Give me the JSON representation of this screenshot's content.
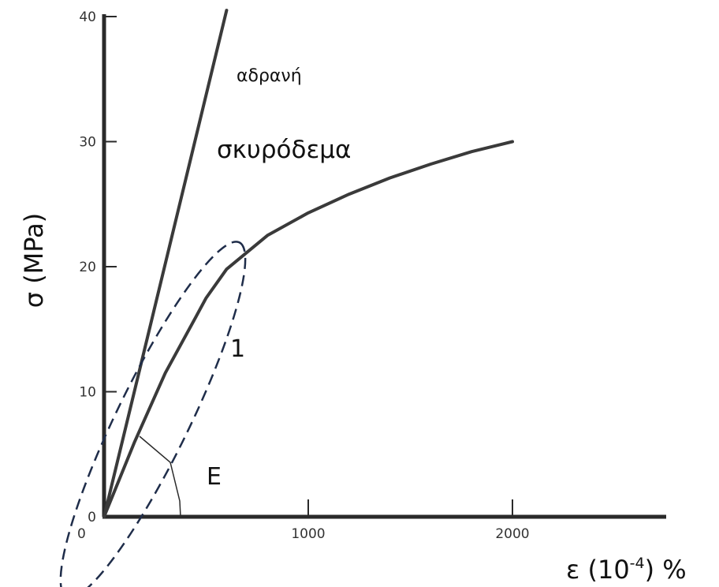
{
  "chart_data": {
    "type": "line",
    "xlabel": "ε (10",
    "xlabel_sup": "-4",
    "xlabel_tail": ") %",
    "ylabel": "σ (MPa)",
    "xlim": [
      0,
      2800
    ],
    "ylim": [
      0,
      40
    ],
    "x_ticks": [
      0,
      1000,
      2000
    ],
    "x_tick_labels": [
      "0",
      "1000",
      "2000"
    ],
    "y_ticks": [
      0,
      10,
      20,
      30,
      40
    ],
    "y_tick_labels": [
      "0",
      "10",
      "20",
      "30",
      "40"
    ],
    "grid": false,
    "series": [
      {
        "name": "αδρανή",
        "x": [
          0,
          200,
          400,
          600
        ],
        "y": [
          0,
          13.5,
          27,
          40.5
        ]
      },
      {
        "name": "σκυρόδεμα",
        "x": [
          0,
          150,
          300,
          450,
          500,
          600,
          800,
          1000,
          1200,
          1400,
          1600,
          1800,
          2000
        ],
        "y": [
          0,
          6,
          11.5,
          16,
          17.5,
          19.8,
          22.5,
          24.3,
          25.8,
          27.1,
          28.2,
          29.2,
          30
        ]
      }
    ],
    "annotations": [
      {
        "text": "1",
        "x": 670,
        "y": 14.5
      },
      {
        "text": "E",
        "x": 560,
        "y": 3.8
      }
    ]
  }
}
